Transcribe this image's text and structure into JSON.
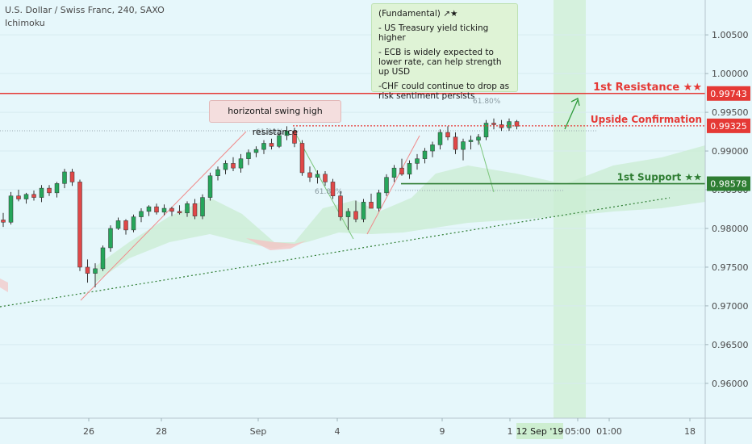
{
  "header": {
    "symbol": "U.S. Dollar / Swiss Franc, 240, SAXO",
    "indicator": "Ichimoku"
  },
  "note": {
    "title": "(Fundamental) ↗★",
    "bullets": [
      "- US Treasury yield ticking higher",
      "- ECB is widely expected to lower rate, can help strength up USD",
      "-CHF could continue to drop as risk sentiment persists"
    ]
  },
  "callout": "horizontal swing high resistance",
  "fib_labels": [
    "61.80%",
    "61.80%",
    "61.80%"
  ],
  "levels": [
    {
      "name": "1st Resistance ★★",
      "value": "0.99743",
      "color": "#e53935"
    },
    {
      "name": "Upside Confirmation",
      "value": "0.99325",
      "color": "#e53935"
    },
    {
      "name": "1st Support ★★",
      "value": "0.98578",
      "color": "#2e7d32"
    }
  ],
  "chart_data": {
    "type": "candlestick",
    "title": "U.S. Dollar / Swiss Franc, 240, SAXO",
    "ylim": [
      0.9555,
      1.0095
    ],
    "y_ticks": [
      "1.00500",
      "1.00000",
      "0.99500",
      "0.99000",
      "0.98500",
      "0.98000",
      "0.97500",
      "0.97000",
      "0.96500",
      "0.96000"
    ],
    "x_ticks": [
      "26",
      "28",
      "Sep",
      "4",
      "9",
      "1",
      "05:00",
      "01:00",
      "18"
    ],
    "x_highlight": "12 Sep '19",
    "candles": [
      [
        0.9811,
        0.982,
        0.9802,
        0.9808
      ],
      [
        0.9808,
        0.9847,
        0.9805,
        0.9842
      ],
      [
        0.9842,
        0.985,
        0.9835,
        0.9838
      ],
      [
        0.9838,
        0.9846,
        0.9832,
        0.9844
      ],
      [
        0.9844,
        0.9849,
        0.9836,
        0.984
      ],
      [
        0.984,
        0.9856,
        0.9834,
        0.9852
      ],
      [
        0.9852,
        0.9856,
        0.9842,
        0.9846
      ],
      [
        0.9846,
        0.986,
        0.984,
        0.9858
      ],
      [
        0.9858,
        0.9877,
        0.9852,
        0.9873
      ],
      [
        0.9873,
        0.9877,
        0.9855,
        0.986
      ],
      [
        0.986,
        0.9863,
        0.9745,
        0.975
      ],
      [
        0.975,
        0.976,
        0.973,
        0.9742
      ],
      [
        0.9742,
        0.9755,
        0.9724,
        0.9748
      ],
      [
        0.9748,
        0.9778,
        0.9745,
        0.9775
      ],
      [
        0.9775,
        0.9804,
        0.977,
        0.98
      ],
      [
        0.98,
        0.9814,
        0.9798,
        0.981
      ],
      [
        0.981,
        0.9812,
        0.9792,
        0.9798
      ],
      [
        0.9798,
        0.9818,
        0.9795,
        0.9815
      ],
      [
        0.9815,
        0.9826,
        0.9808,
        0.9822
      ],
      [
        0.9822,
        0.983,
        0.9816,
        0.9828
      ],
      [
        0.9828,
        0.9832,
        0.9818,
        0.9821
      ],
      [
        0.9821,
        0.9831,
        0.9817,
        0.9826
      ],
      [
        0.9826,
        0.9828,
        0.9816,
        0.9822
      ],
      [
        0.9822,
        0.983,
        0.9818,
        0.982
      ],
      [
        0.982,
        0.9835,
        0.9815,
        0.9832
      ],
      [
        0.9832,
        0.9838,
        0.9812,
        0.9816
      ],
      [
        0.9816,
        0.9844,
        0.9812,
        0.984
      ],
      [
        0.984,
        0.9872,
        0.9836,
        0.9868
      ],
      [
        0.9868,
        0.988,
        0.9862,
        0.9876
      ],
      [
        0.9876,
        0.9888,
        0.987,
        0.9884
      ],
      [
        0.9884,
        0.9892,
        0.9874,
        0.9878
      ],
      [
        0.9878,
        0.9896,
        0.9872,
        0.989
      ],
      [
        0.989,
        0.9902,
        0.9882,
        0.9898
      ],
      [
        0.9898,
        0.9906,
        0.9892,
        0.9902
      ],
      [
        0.9902,
        0.9914,
        0.9896,
        0.991
      ],
      [
        0.991,
        0.9916,
        0.9902,
        0.9906
      ],
      [
        0.9906,
        0.9923,
        0.9904,
        0.992
      ],
      [
        0.992,
        0.9932,
        0.9914,
        0.9926
      ],
      [
        0.9926,
        0.993,
        0.9905,
        0.991
      ],
      [
        0.991,
        0.9914,
        0.9868,
        0.9872
      ],
      [
        0.9872,
        0.988,
        0.986,
        0.9866
      ],
      [
        0.9866,
        0.9875,
        0.9858,
        0.987
      ],
      [
        0.987,
        0.9874,
        0.9855,
        0.986
      ],
      [
        0.986,
        0.9864,
        0.9838,
        0.9842
      ],
      [
        0.9842,
        0.9848,
        0.981,
        0.9815
      ],
      [
        0.9815,
        0.9826,
        0.9798,
        0.9822
      ],
      [
        0.9822,
        0.9836,
        0.9808,
        0.9812
      ],
      [
        0.9812,
        0.9838,
        0.9808,
        0.9834
      ],
      [
        0.9834,
        0.9845,
        0.9826,
        0.9826
      ],
      [
        0.9826,
        0.985,
        0.9822,
        0.9846
      ],
      [
        0.9846,
        0.987,
        0.9842,
        0.9866
      ],
      [
        0.9866,
        0.9882,
        0.986,
        0.9878
      ],
      [
        0.9878,
        0.989,
        0.9868,
        0.987
      ],
      [
        0.987,
        0.9888,
        0.9864,
        0.9884
      ],
      [
        0.9884,
        0.9896,
        0.9876,
        0.989
      ],
      [
        0.989,
        0.9904,
        0.9884,
        0.99
      ],
      [
        0.99,
        0.9912,
        0.9892,
        0.9908
      ],
      [
        0.9908,
        0.9928,
        0.9902,
        0.9924
      ],
      [
        0.9924,
        0.9932,
        0.9914,
        0.9918
      ],
      [
        0.9918,
        0.9924,
        0.9896,
        0.9902
      ],
      [
        0.9902,
        0.9916,
        0.9888,
        0.9912
      ],
      [
        0.9912,
        0.992,
        0.9902,
        0.9914
      ],
      [
        0.9914,
        0.9922,
        0.9908,
        0.9918
      ],
      [
        0.9918,
        0.994,
        0.9914,
        0.9936
      ],
      [
        0.9936,
        0.9942,
        0.9928,
        0.9934
      ],
      [
        0.9934,
        0.994,
        0.9926,
        0.993
      ],
      [
        0.993,
        0.9942,
        0.9926,
        0.9938
      ],
      [
        0.9938,
        0.994,
        0.9928,
        0.9932
      ]
    ]
  }
}
